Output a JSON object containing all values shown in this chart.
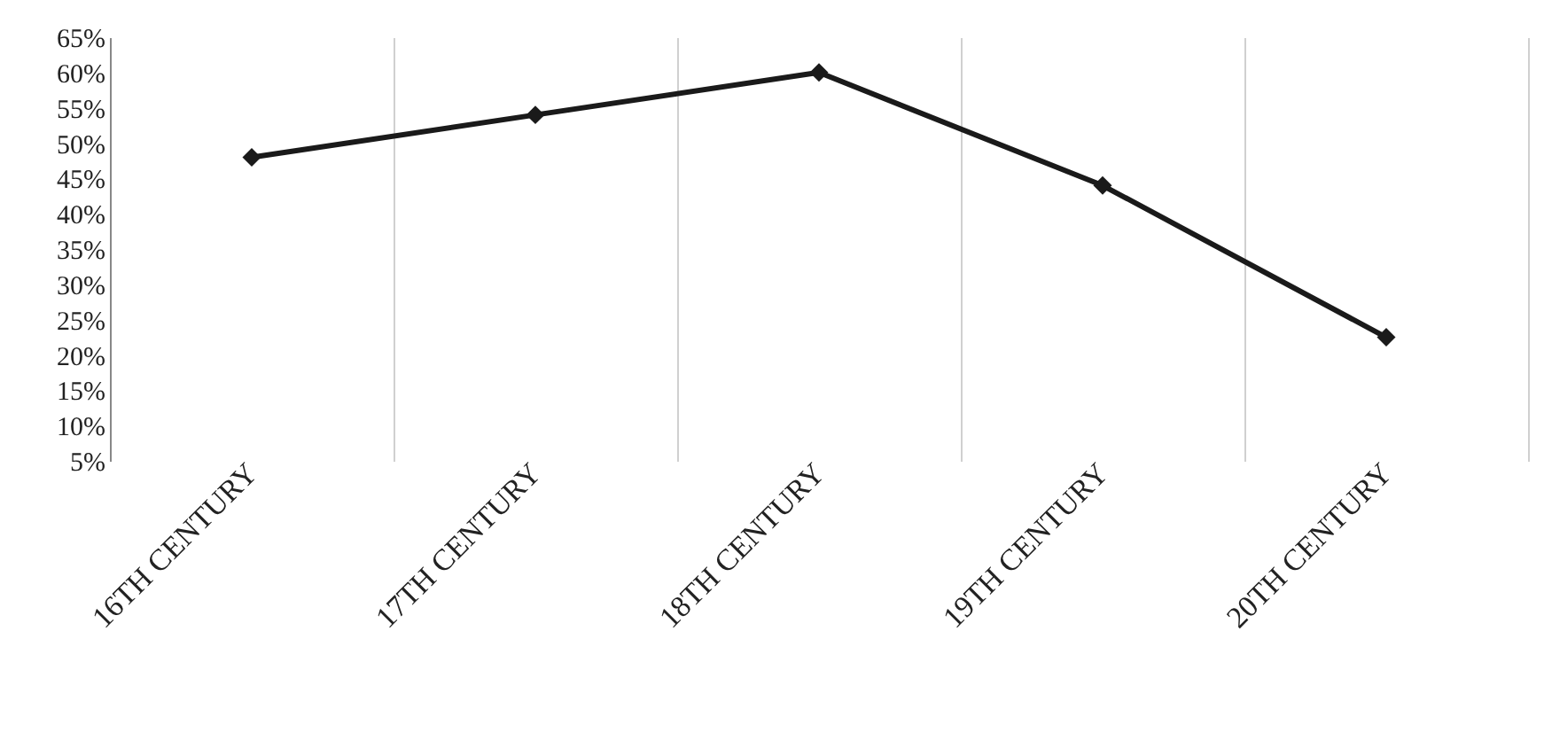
{
  "chart_data": {
    "type": "line",
    "categories": [
      "16TH CENTURY",
      "17TH CENTURY",
      "18TH CENTURY",
      "19TH CENTURY",
      "20TH CENTURY"
    ],
    "series": [
      {
        "color": "#1a1a1a",
        "values": [
          48,
          54,
          60,
          44,
          22.5
        ]
      }
    ],
    "ylim": [
      5,
      65
    ],
    "yticks": [
      {
        "value": 5,
        "label": "5%"
      },
      {
        "value": 10,
        "label": "10%"
      },
      {
        "value": 15,
        "label": "15%"
      },
      {
        "value": 20,
        "label": "20%"
      },
      {
        "value": 25,
        "label": "25%"
      },
      {
        "value": 30,
        "label": "30%"
      },
      {
        "value": 35,
        "label": "35%"
      },
      {
        "value": 40,
        "label": "40%"
      },
      {
        "value": 45,
        "label": "45%"
      },
      {
        "value": 50,
        "label": "50%"
      },
      {
        "value": 55,
        "label": "55%"
      },
      {
        "value": 60,
        "label": "60%"
      },
      {
        "value": 65,
        "label": "65%"
      }
    ],
    "grid": "x",
    "marker": "diamond",
    "line_style": "solid",
    "legend": false
  }
}
